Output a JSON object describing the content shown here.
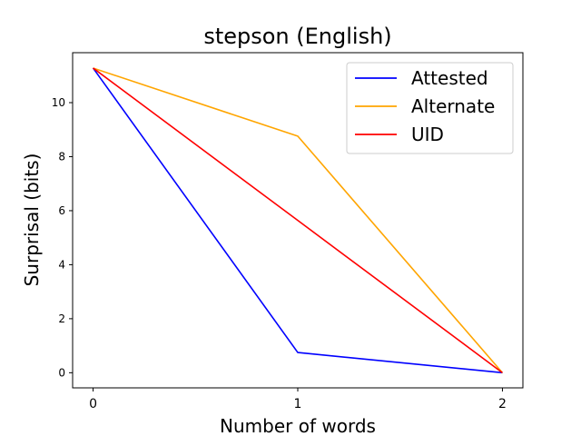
{
  "chart_data": {
    "type": "line",
    "title": "stepson (English)",
    "xlabel": "Number of words",
    "ylabel": "Surprisal (bits)",
    "x": [
      0,
      1,
      2
    ],
    "x_ticks": [
      "0",
      "1",
      "2"
    ],
    "y_ticks": [
      "0",
      "2",
      "4",
      "6",
      "8",
      "10"
    ],
    "xlim": [
      -0.1,
      2.1
    ],
    "ylim": [
      -0.56,
      11.85
    ],
    "grid": false,
    "legend_position": "top-right",
    "series": [
      {
        "name": "Attested",
        "color": "#0000ff",
        "values": [
          11.28,
          0.75,
          0.0
        ]
      },
      {
        "name": "Alternate",
        "color": "#ffa500",
        "values": [
          11.28,
          8.76,
          0.0
        ]
      },
      {
        "name": "UID",
        "color": "#ff0000",
        "values": [
          11.28,
          5.64,
          0.0
        ]
      }
    ]
  }
}
